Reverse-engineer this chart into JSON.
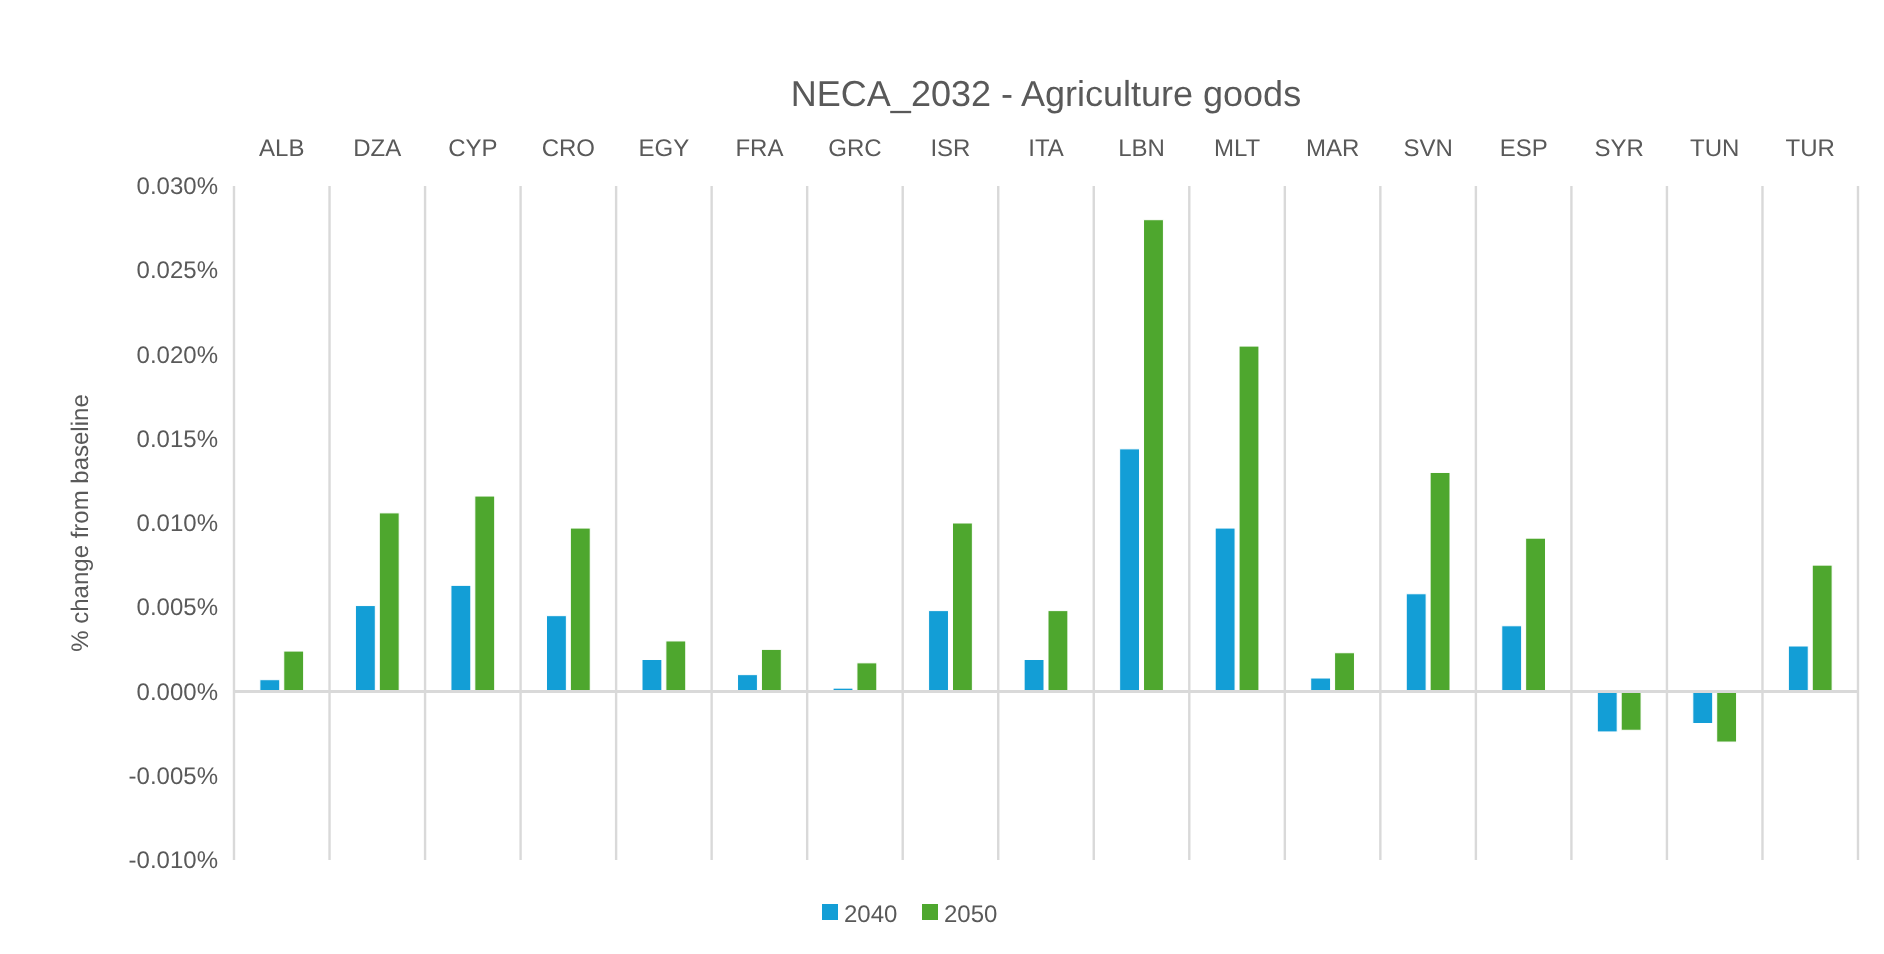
{
  "chart_data": {
    "type": "bar",
    "title": "NECA_2032 - Agriculture goods",
    "ylabel": "% change from baseline",
    "categories": [
      "ALB",
      "DZA",
      "CYP",
      "CRO",
      "EGY",
      "FRA",
      "GRC",
      "ISR",
      "ITA",
      "LBN",
      "MLT",
      "MAR",
      "SVN",
      "ESP",
      "SYR",
      "TUN",
      "TUR"
    ],
    "series": [
      {
        "name": "2040",
        "color": "#139ed6",
        "values": [
          0.0007,
          0.0051,
          0.0063,
          0.0045,
          0.0019,
          0.001,
          0.0002,
          0.0048,
          0.0019,
          0.0144,
          0.0097,
          0.0008,
          0.0058,
          0.0039,
          -0.0024,
          -0.0019,
          0.0027
        ]
      },
      {
        "name": "2050",
        "color": "#4ea72e",
        "values": [
          0.0024,
          0.0106,
          0.0116,
          0.0097,
          0.003,
          0.0025,
          0.0017,
          0.01,
          0.0048,
          0.028,
          0.0205,
          0.0023,
          0.013,
          0.0091,
          -0.0023,
          -0.003,
          0.0075
        ]
      }
    ],
    "ylim": [
      -0.01,
      0.03
    ],
    "yticks": [
      {
        "value": -0.01,
        "label": "-0.010%"
      },
      {
        "value": -0.005,
        "label": "-0.005%"
      },
      {
        "value": 0,
        "label": "0.000%"
      },
      {
        "value": 0.005,
        "label": "0.005%"
      },
      {
        "value": 0.01,
        "label": "0.010%"
      },
      {
        "value": 0.015,
        "label": "0.015%"
      },
      {
        "value": 0.02,
        "label": "0.020%"
      },
      {
        "value": 0.025,
        "label": "0.025%"
      },
      {
        "value": 0.03,
        "label": "0.030%"
      }
    ],
    "grid": "x",
    "legend": "bottom"
  }
}
